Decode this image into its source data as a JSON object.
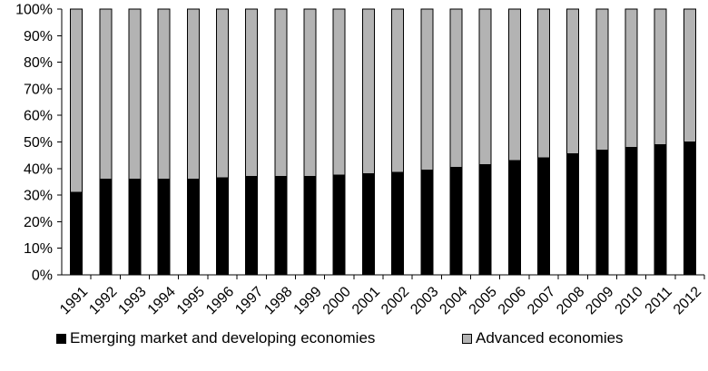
{
  "chart_data": {
    "type": "bar",
    "stacked": true,
    "percent_stacked": true,
    "title": "",
    "xlabel": "",
    "ylabel": "",
    "categories": [
      "1991",
      "1992",
      "1993",
      "1994",
      "1995",
      "1996",
      "1997",
      "1998",
      "1999",
      "2000",
      "2001",
      "2002",
      "2003",
      "2004",
      "2005",
      "2006",
      "2007",
      "2008",
      "2009",
      "2010",
      "2011",
      "2012"
    ],
    "series": [
      {
        "name": "Emerging market and developing economies",
        "color": "#000000",
        "values": [
          31,
          36,
          36,
          36,
          36,
          36.5,
          37,
          37,
          37,
          37.5,
          38,
          38.5,
          39.5,
          40.5,
          41.5,
          43,
          44,
          45.5,
          47,
          48,
          49,
          50
        ]
      },
      {
        "name": "Advanced economies",
        "color": "#b3b3b3",
        "values": [
          69,
          64,
          64,
          64,
          64,
          63.5,
          63,
          63,
          63,
          62.5,
          62,
          61.5,
          60.5,
          59.5,
          58.5,
          57,
          56,
          54.5,
          53,
          52,
          51,
          50
        ]
      }
    ],
    "ylim": [
      0,
      100
    ],
    "yticks": [
      "0%",
      "10%",
      "20%",
      "30%",
      "40%",
      "50%",
      "60%",
      "70%",
      "80%",
      "90%",
      "100%"
    ],
    "grid": false,
    "legend_position": "bottom"
  }
}
